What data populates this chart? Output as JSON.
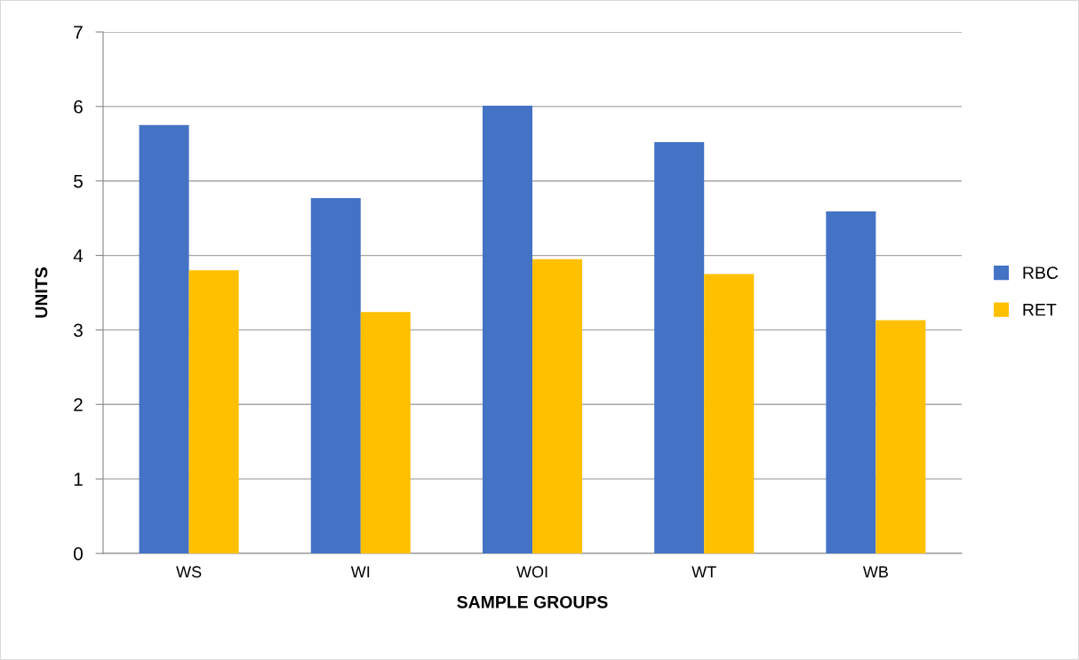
{
  "chart_data": {
    "type": "bar",
    "xlabel": "SAMPLE GROUPS",
    "ylabel": "UNITS",
    "categories": [
      "WS",
      "WI",
      "WOI",
      "WT",
      "WB"
    ],
    "series": [
      {
        "name": "RBC",
        "color": "#4472c4",
        "values": [
          5.75,
          4.77,
          6.01,
          5.52,
          4.59
        ]
      },
      {
        "name": "RET",
        "color": "#ffc000",
        "values": [
          3.8,
          3.24,
          3.95,
          3.75,
          3.13
        ]
      }
    ],
    "ylim": [
      0,
      7
    ],
    "yticks": [
      0,
      1,
      2,
      3,
      4,
      5,
      6,
      7
    ],
    "grid": "y",
    "legend": "right"
  }
}
